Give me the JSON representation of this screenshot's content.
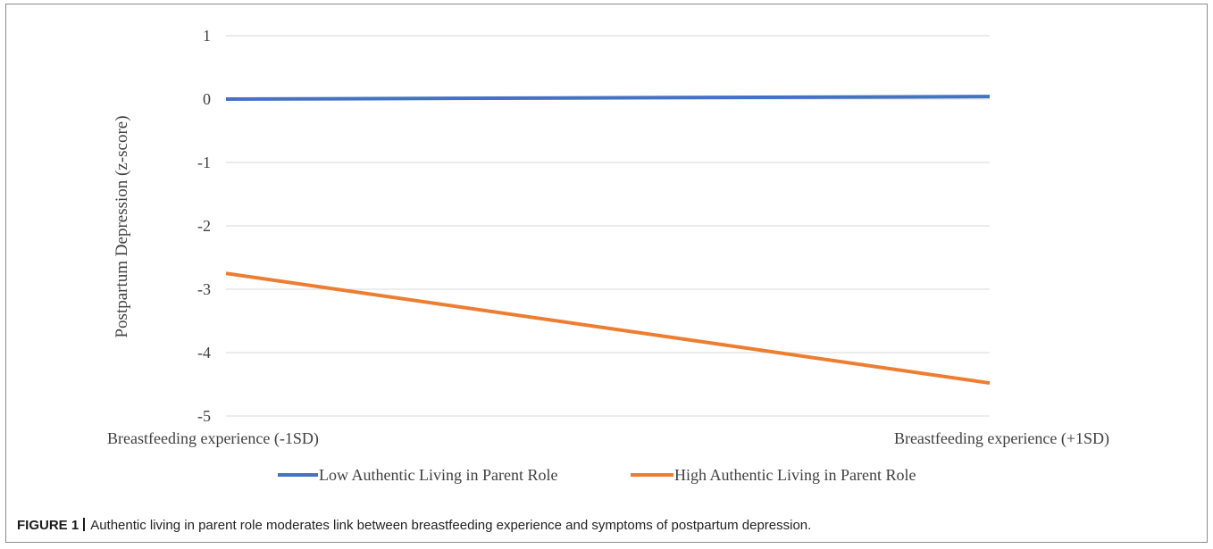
{
  "chart_data": {
    "type": "line",
    "categories": [
      "Breastfeeding experience (-1SD)",
      "Breastfeeding experience (+1SD)"
    ],
    "series": [
      {
        "name": "Low Authentic Living in Parent Role",
        "values": [
          0.0,
          0.04
        ],
        "color": "#4472C4"
      },
      {
        "name": "High Authentic Living in Parent Role",
        "values": [
          -2.75,
          -4.48
        ],
        "color": "#ED7D31"
      }
    ],
    "title": "",
    "xlabel": "",
    "ylabel": "Postpartum Depression (z-score)",
    "ylim": [
      -5,
      1
    ],
    "yticks": [
      1,
      0,
      -1,
      -2,
      -3,
      -4,
      -5
    ],
    "grid": true,
    "legend_position": "bottom"
  },
  "caption": {
    "label": "FIGURE 1",
    "text": "Authentic living in parent role moderates link between breastfeeding experience and symptoms of postpartum depression."
  }
}
